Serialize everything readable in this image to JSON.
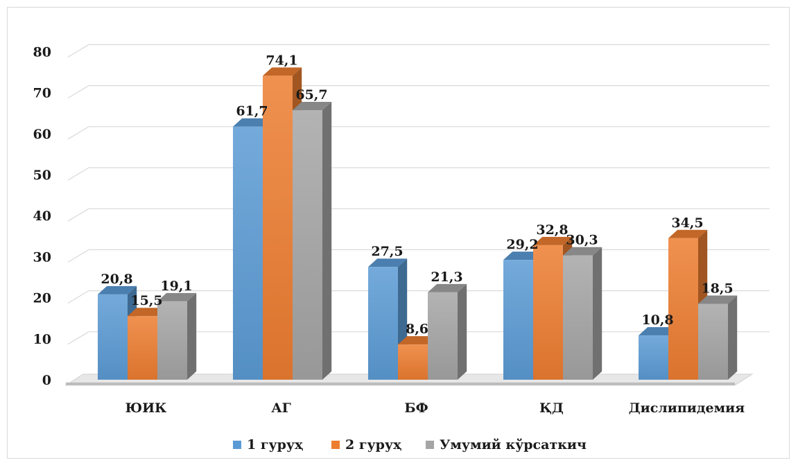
{
  "chart_data": {
    "type": "bar",
    "categories": [
      "ЮИК",
      "АГ",
      "БФ",
      "ҚД",
      "Дислипидемия"
    ],
    "series": [
      {
        "name": "1 гуруҳ",
        "values": [
          20.8,
          61.7,
          27.5,
          29.2,
          10.8
        ],
        "labels": [
          "20,8",
          "61,7",
          "27,5",
          "29,2",
          "10,8"
        ],
        "color": "#5b9bd5"
      },
      {
        "name": "2 гуруҳ",
        "values": [
          15.5,
          74.1,
          8.6,
          32.8,
          34.5
        ],
        "labels": [
          "15,5",
          "74,1",
          "8,6",
          "32,8",
          "34,5"
        ],
        "color": "#ed7d31"
      },
      {
        "name": "Умумий кўрсаткич",
        "values": [
          19.1,
          65.7,
          21.3,
          30.3,
          18.5
        ],
        "labels": [
          "19,1",
          "65,7",
          "21,3",
          "30,3",
          "18,5"
        ],
        "color": "#a5a5a5"
      }
    ],
    "y_ticks": [
      "0",
      "10",
      "20",
      "30",
      "40",
      "50",
      "60",
      "70",
      "80"
    ],
    "ylim": [
      0,
      80
    ],
    "grid": true,
    "legend": "bottom",
    "title": "",
    "xlabel": "",
    "ylabel": ""
  }
}
